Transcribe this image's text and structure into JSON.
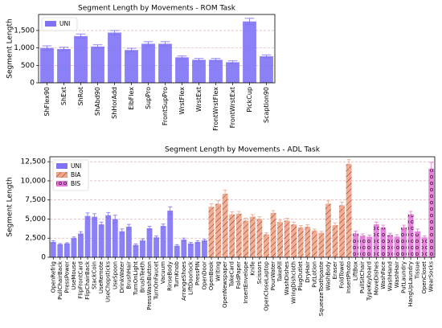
{
  "chart_data": [
    {
      "type": "bar",
      "title": "Segment Length by Movements - ROM Task",
      "y_label": "Segment Length",
      "categories": [
        "ShFlex90",
        "ShExt",
        "ShRot",
        "ShAbd90",
        "ShHorAdd",
        "ElbFlex",
        "SupPro",
        "FrontSupPro",
        "WrstFlex",
        "WrstExt",
        "FrontWrstFlex",
        "FrontWrstExt",
        "PickCup",
        "Scaption90"
      ],
      "series": [
        {
          "name": "UNI",
          "color": "#7f72f5",
          "hatch": null,
          "values": [
            1000,
            970,
            1340,
            1040,
            1440,
            940,
            1120,
            1120,
            730,
            660,
            660,
            590,
            1760,
            760
          ],
          "errors": [
            60,
            50,
            60,
            50,
            60,
            50,
            60,
            60,
            40,
            40,
            40,
            40,
            90,
            40
          ]
        }
      ],
      "ylim": [
        0,
        1960
      ],
      "yticks": [
        0,
        500,
        {
          "value": 1000,
          "label": "1,000"
        },
        {
          "value": 1500,
          "label": "1,500"
        }
      ],
      "grid": true,
      "legend": "upper left"
    },
    {
      "type": "bar",
      "title": "Segment Length by Movements - ADL Task",
      "y_label": "Segment Length",
      "categories": [
        "OpenRefrig",
        "PullChairBack",
        "PressPower",
        "UseMouse",
        "FlipFrontCard",
        "FlipChairBack",
        "StackCoin",
        "UseRemote",
        "UseChopsticks",
        "UseSpoon",
        "DrinkWater",
        "BrushHair",
        "TurnOnLight",
        "BrushTeeth",
        "PressWashButton",
        "TurnOnFaucet",
        "Vacuum",
        "RinseBody",
        "TurnKnob",
        "ArrangeShoes",
        "LiftDoorlock",
        "PressPIN",
        "OpenDoor",
        "OpenBook",
        "Writing",
        "OpenNewspaper",
        "TakeCard",
        "FoldPaper",
        "InsertEnvelope",
        "Knife",
        "Scissors",
        "OpenCloseLaptop",
        "PourWater",
        "TakePill",
        "WashDishes",
        "WringDishcloth",
        "PlugOutlet",
        "DryHair",
        "PutLotion",
        "SqueezeToothpaste",
        "WashBody",
        "Eraser",
        "FoldTowel",
        "InsertPhoto",
        "LiftBox",
        "PullSitChair",
        "TypeKeyboard",
        "MoveDishes",
        "WashFace",
        "WashHand",
        "WashHair",
        "PutLaundry",
        "HangUpLaundry",
        "Tissue",
        "OpenCloset",
        "WearSocks"
      ],
      "series": [
        {
          "name": "UNI",
          "color": "#7f72f5",
          "hatch": null,
          "values": [
            2000,
            1700,
            1800,
            2500,
            3100,
            5400,
            5300,
            4300,
            5500,
            5000,
            3400,
            4000,
            1600,
            2200,
            3800,
            2600,
            4100,
            6100,
            1500,
            2300,
            1800,
            2000,
            2200,
            null,
            null,
            null,
            null,
            null,
            null,
            null,
            null,
            null,
            null,
            null,
            null,
            null,
            null,
            null,
            null,
            null,
            null,
            null,
            null,
            null,
            null,
            null,
            null,
            null,
            null,
            null,
            null,
            null,
            null,
            null,
            null,
            null
          ],
          "errors": [
            150,
            100,
            100,
            150,
            250,
            400,
            400,
            300,
            350,
            500,
            300,
            300,
            150,
            200,
            250,
            200,
            250,
            500,
            150,
            200,
            150,
            150,
            150,
            null,
            null,
            null,
            null,
            null,
            null,
            null,
            null,
            null,
            null,
            null,
            null,
            null,
            null,
            null,
            null,
            null,
            null,
            null,
            null,
            null,
            null,
            null,
            null,
            null,
            null,
            null,
            null,
            null,
            null,
            null,
            null,
            null
          ]
        },
        {
          "name": "BIA",
          "color": "#f2a488",
          "hatch": "//",
          "values": [
            null,
            null,
            null,
            null,
            null,
            null,
            null,
            null,
            null,
            null,
            null,
            null,
            null,
            null,
            null,
            null,
            null,
            null,
            null,
            null,
            null,
            null,
            null,
            6600,
            7000,
            8300,
            5600,
            5700,
            4800,
            5300,
            5000,
            3000,
            5800,
            4600,
            4800,
            4300,
            3900,
            4000,
            3500,
            3200,
            7000,
            4200,
            6800,
            12200,
            null,
            null,
            null,
            null,
            null,
            null,
            null,
            null,
            null,
            null,
            null,
            null
          ],
          "errors": [
            null,
            null,
            null,
            null,
            null,
            null,
            null,
            null,
            null,
            null,
            null,
            null,
            null,
            null,
            null,
            null,
            null,
            null,
            null,
            null,
            null,
            null,
            null,
            400,
            400,
            500,
            350,
            300,
            300,
            300,
            300,
            200,
            300,
            250,
            300,
            300,
            250,
            250,
            200,
            200,
            400,
            300,
            400,
            600,
            null,
            null,
            null,
            null,
            null,
            null,
            null,
            null,
            null,
            null,
            null,
            null
          ]
        },
        {
          "name": "BIS",
          "color": "#e27ad8",
          "hatch": "o",
          "values": [
            null,
            null,
            null,
            null,
            null,
            null,
            null,
            null,
            null,
            null,
            null,
            null,
            null,
            null,
            null,
            null,
            null,
            null,
            null,
            null,
            null,
            null,
            null,
            null,
            null,
            null,
            null,
            null,
            null,
            null,
            null,
            null,
            null,
            null,
            null,
            null,
            null,
            null,
            null,
            null,
            null,
            null,
            null,
            null,
            3100,
            2800,
            2700,
            4300,
            3900,
            2900,
            2700,
            3900,
            5600,
            3400,
            2600,
            11600
          ],
          "errors": [
            null,
            null,
            null,
            null,
            null,
            null,
            null,
            null,
            null,
            null,
            null,
            null,
            null,
            null,
            null,
            null,
            null,
            null,
            null,
            null,
            null,
            null,
            null,
            null,
            null,
            null,
            null,
            null,
            null,
            null,
            null,
            null,
            null,
            null,
            null,
            null,
            null,
            null,
            null,
            null,
            null,
            null,
            null,
            null,
            300,
            250,
            200,
            300,
            300,
            250,
            250,
            300,
            400,
            300,
            200,
            800
          ]
        }
      ],
      "ylim": [
        0,
        13150
      ],
      "yticks": [
        0,
        {
          "value": 2500,
          "label": "2,500"
        },
        {
          "value": 5000,
          "label": "5,000"
        },
        {
          "value": 7500,
          "label": "7,500"
        },
        {
          "value": 10000,
          "label": "10,000"
        },
        {
          "value": 12500,
          "label": "12,500"
        }
      ],
      "grid": true,
      "legend": "upper left"
    }
  ]
}
